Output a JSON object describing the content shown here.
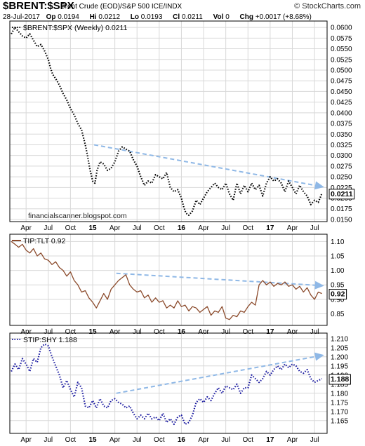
{
  "header": {
    "symbol": "$BRENT:$SPX",
    "description": "Brent Crude (EOD)/S&P 500 ICE/INDX",
    "brand": "© StockCharts.com",
    "date": "28-Jul-2017",
    "quote": [
      {
        "label": "Op",
        "value": "0.0194"
      },
      {
        "label": "Hi",
        "value": "0.0212"
      },
      {
        "label": "Lo",
        "value": "0.0193"
      },
      {
        "label": "Cl",
        "value": "0.0211"
      },
      {
        "label": "Vol",
        "value": "0"
      },
      {
        "label": "Chg",
        "value": "+0.0017 (+8.68%)"
      }
    ],
    "watermark": "financialscanner.blogspot.com"
  },
  "x_axis": {
    "ticks": [
      {
        "t": 1,
        "label": "Apr",
        "bold": false
      },
      {
        "t": 4,
        "label": "Jul",
        "bold": false
      },
      {
        "t": 7,
        "label": "Oct",
        "bold": false
      },
      {
        "t": 10,
        "label": "15",
        "bold": true
      },
      {
        "t": 13,
        "label": "Apr",
        "bold": false
      },
      {
        "t": 16,
        "label": "Jul",
        "bold": false
      },
      {
        "t": 19,
        "label": "Oct",
        "bold": false
      },
      {
        "t": 22,
        "label": "16",
        "bold": true
      },
      {
        "t": 25,
        "label": "Apr",
        "bold": false
      },
      {
        "t": 28,
        "label": "Jul",
        "bold": false
      },
      {
        "t": 31,
        "label": "Oct",
        "bold": false
      },
      {
        "t": 34,
        "label": "17",
        "bold": true
      },
      {
        "t": 37,
        "label": "Apr",
        "bold": false
      },
      {
        "t": 40,
        "label": "Jul",
        "bold": false
      }
    ],
    "t_range": [
      -1.2,
      41.7
    ]
  },
  "colors": {
    "panel1": "#000000",
    "panel2": "#8b4a2b",
    "panel3": "#1a1aa0",
    "trend": "#8fb8e6",
    "grid": "#d8d8d8"
  },
  "chart_data": [
    {
      "type": "line",
      "title": "$BRENT:$SPX (Weekly) 0.0211",
      "ylim": [
        0.0145,
        0.0615
      ],
      "yticks": [
        "0.0600",
        "0.0575",
        "0.0550",
        "0.0525",
        "0.0500",
        "0.0475",
        "0.0450",
        "0.0425",
        "0.0400",
        "0.0375",
        "0.0350",
        "0.0325",
        "0.0300",
        "0.0275",
        "0.0250",
        "0.0225",
        "0.0200",
        "0.0175",
        "0.0150"
      ],
      "last": "0.0211",
      "series": [
        {
          "t": [
            -1.0,
            -0.5,
            0,
            0.5,
            1,
            1.5,
            2,
            2.5,
            3,
            3.5,
            4,
            4.3,
            4.6,
            5,
            5.5,
            6,
            6.5,
            7,
            7.5,
            8,
            8.5,
            9,
            9.3,
            9.6,
            10,
            10.3,
            10.6,
            11,
            11.5,
            12,
            12.5,
            13,
            13.5,
            14,
            14.5,
            15,
            15.5,
            16,
            16.5,
            17,
            17.5,
            18,
            18.5,
            19,
            19.5,
            20,
            20.5,
            21,
            21.5,
            22,
            22.3,
            22.6,
            23,
            23.5,
            24,
            24.5,
            25,
            25.5,
            26,
            26.5,
            27,
            27.5,
            28,
            28.5,
            29,
            29.5,
            30,
            30.5,
            31,
            31.5,
            32,
            32.5,
            33,
            33.5,
            34,
            34.5,
            35,
            35.5,
            36,
            36.5,
            37,
            37.5,
            38,
            38.5,
            39,
            39.5,
            40,
            40.5,
            41
          ],
          "y": [
            0.0585,
            0.06,
            0.059,
            0.058,
            0.0575,
            0.0585,
            0.057,
            0.0555,
            0.056,
            0.0545,
            0.0525,
            0.0505,
            0.049,
            0.048,
            0.0465,
            0.0445,
            0.043,
            0.041,
            0.0395,
            0.0375,
            0.036,
            0.0325,
            0.03,
            0.027,
            0.024,
            0.0235,
            0.0265,
            0.0285,
            0.028,
            0.0265,
            0.027,
            0.0285,
            0.031,
            0.032,
            0.0315,
            0.031,
            0.029,
            0.0275,
            0.025,
            0.023,
            0.024,
            0.0235,
            0.0255,
            0.025,
            0.0245,
            0.026,
            0.0225,
            0.0215,
            0.022,
            0.02,
            0.018,
            0.0165,
            0.016,
            0.017,
            0.0195,
            0.0185,
            0.02,
            0.0215,
            0.0225,
            0.0235,
            0.0225,
            0.022,
            0.0235,
            0.021,
            0.0195,
            0.0235,
            0.021,
            0.023,
            0.0215,
            0.0235,
            0.022,
            0.023,
            0.0205,
            0.0235,
            0.025,
            0.024,
            0.0245,
            0.0235,
            0.0215,
            0.024,
            0.0225,
            0.021,
            0.023,
            0.0215,
            0.0205,
            0.0185,
            0.0195,
            0.019,
            0.0211
          ],
          "style": "dotted"
        }
      ],
      "trendline": {
        "t": [
          10.2,
          41.3
        ],
        "y": [
          0.0325,
          0.0226
        ]
      }
    },
    {
      "type": "line",
      "title": "TIP:TLT 0.92",
      "ylim": [
        0.81,
        1.125
      ],
      "yticks": [
        "1.10",
        "1.05",
        "1.00",
        "0.95",
        "0.90",
        "0.85"
      ],
      "last": "0.92",
      "series": [
        {
          "t": [
            -1.0,
            -0.5,
            0,
            0.5,
            1,
            1.5,
            2,
            2.5,
            3,
            3.5,
            4,
            4.5,
            5,
            5.5,
            6,
            6.5,
            7,
            7.5,
            8,
            8.5,
            9,
            9.5,
            10,
            10.5,
            11,
            11.5,
            12,
            12.5,
            13,
            13.5,
            14,
            14.5,
            15,
            15.5,
            16,
            16.5,
            17,
            17.5,
            18,
            18.5,
            19,
            19.5,
            20,
            20.5,
            21,
            21.5,
            22,
            22.5,
            23,
            23.5,
            24,
            24.5,
            25,
            25.5,
            26,
            26.5,
            27,
            27.5,
            28,
            28.5,
            29,
            29.5,
            30,
            30.5,
            31,
            31.5,
            32,
            32.5,
            33,
            33.5,
            34,
            34.5,
            35,
            35.5,
            36,
            36.5,
            37,
            37.5,
            38,
            38.5,
            39,
            39.5,
            40,
            40.5,
            41
          ],
          "y": [
            1.1,
            1.09,
            1.08,
            1.09,
            1.07,
            1.06,
            1.075,
            1.05,
            1.06,
            1.04,
            1.035,
            1.02,
            1.03,
            1.01,
            1.0,
            0.98,
            0.995,
            0.965,
            0.95,
            0.925,
            0.93,
            0.905,
            0.89,
            0.87,
            0.895,
            0.92,
            0.9,
            0.935,
            0.95,
            0.965,
            0.975,
            0.985,
            0.95,
            0.935,
            0.925,
            0.93,
            0.905,
            0.915,
            0.89,
            0.905,
            0.89,
            0.895,
            0.87,
            0.88,
            0.87,
            0.895,
            0.875,
            0.88,
            0.86,
            0.875,
            0.87,
            0.855,
            0.865,
            0.875,
            0.845,
            0.86,
            0.855,
            0.875,
            0.835,
            0.83,
            0.845,
            0.84,
            0.86,
            0.855,
            0.875,
            0.89,
            0.88,
            0.95,
            0.965,
            0.95,
            0.96,
            0.945,
            0.955,
            0.95,
            0.96,
            0.945,
            0.95,
            0.935,
            0.945,
            0.925,
            0.94,
            0.915,
            0.9,
            0.925,
            0.92
          ],
          "style": "solid"
        }
      ],
      "trendline": {
        "t": [
          13.2,
          41.3
        ],
        "y": [
          0.99,
          0.947
        ]
      }
    },
    {
      "type": "line",
      "title": "STIP:SHY 1.188",
      "ylim": [
        1.158,
        1.213
      ],
      "yticks": [
        "1.210",
        "1.205",
        "1.200",
        "1.195",
        "1.190",
        "1.185",
        "1.180",
        "1.175",
        "1.170",
        "1.165"
      ],
      "last": "1.188",
      "series": [
        {
          "t": [
            -1.0,
            -0.5,
            0,
            0.5,
            1,
            1.5,
            2,
            2.5,
            3,
            3.5,
            4,
            4.5,
            5,
            5.5,
            6,
            6.5,
            7,
            7.5,
            8,
            8.5,
            9,
            9.5,
            10,
            10.5,
            11,
            11.5,
            12,
            12.5,
            13,
            13.5,
            14,
            14.5,
            15,
            15.5,
            16,
            16.5,
            17,
            17.5,
            18,
            18.5,
            19,
            19.5,
            20,
            20.5,
            21,
            21.5,
            22,
            22.5,
            23,
            23.5,
            24,
            24.5,
            25,
            25.5,
            26,
            26.5,
            27,
            27.5,
            28,
            28.5,
            29,
            29.5,
            30,
            30.5,
            31,
            31.5,
            32,
            32.5,
            33,
            33.5,
            34,
            34.5,
            35,
            35.5,
            36,
            36.5,
            37,
            37.5,
            38,
            38.5,
            39,
            39.5,
            40,
            40.5,
            41
          ],
          "y": [
            1.192,
            1.196,
            1.193,
            1.199,
            1.196,
            1.192,
            1.199,
            1.197,
            1.205,
            1.207,
            1.206,
            1.2,
            1.195,
            1.19,
            1.183,
            1.187,
            1.182,
            1.178,
            1.186,
            1.183,
            1.173,
            1.172,
            1.176,
            1.172,
            1.177,
            1.173,
            1.172,
            1.176,
            1.177,
            1.175,
            1.174,
            1.172,
            1.173,
            1.169,
            1.166,
            1.168,
            1.166,
            1.169,
            1.166,
            1.167,
            1.165,
            1.169,
            1.164,
            1.166,
            1.163,
            1.167,
            1.168,
            1.163,
            1.164,
            1.168,
            1.175,
            1.177,
            1.175,
            1.178,
            1.176,
            1.18,
            1.183,
            1.18,
            1.184,
            1.183,
            1.182,
            1.185,
            1.18,
            1.183,
            1.183,
            1.19,
            1.188,
            1.186,
            1.188,
            1.192,
            1.19,
            1.193,
            1.195,
            1.193,
            1.196,
            1.194,
            1.196,
            1.195,
            1.192,
            1.191,
            1.193,
            1.188,
            1.186,
            1.187,
            1.188
          ],
          "style": "dotted"
        }
      ],
      "trendline": {
        "t": [
          13.2,
          41.3
        ],
        "y": [
          1.18,
          1.201
        ]
      }
    }
  ]
}
